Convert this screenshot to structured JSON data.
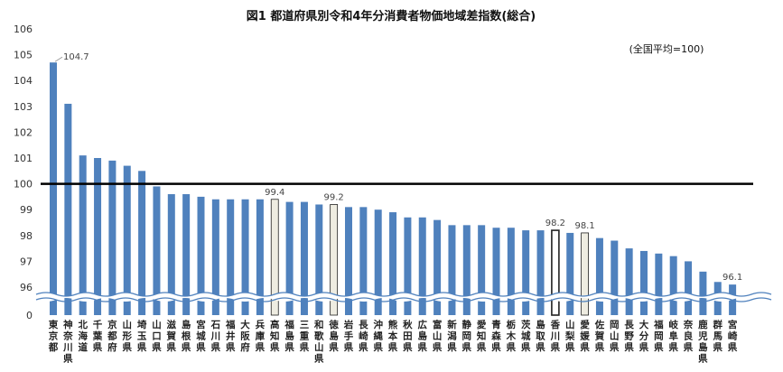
{
  "chart_data": {
    "type": "bar",
    "title": "図1 都道府県別令和4年分消費者物価地域差指数(総合)",
    "note": "(全国平均=100)",
    "ylim": [
      96,
      106
    ],
    "baseline_value": 100,
    "yticks": [
      "0",
      "96",
      "97",
      "98",
      "99",
      "100",
      "101",
      "102",
      "103",
      "104",
      "105",
      "106"
    ],
    "axis_break": true,
    "grid": false,
    "colors": {
      "bar": "#4f81bd",
      "highlight": "#eeece1",
      "outlined": "#ffffff",
      "baseline": "#000000"
    },
    "categories": [
      "東京都",
      "神奈川県",
      "北海道",
      "千葉県",
      "京都府",
      "山形県",
      "埼玉県",
      "山口県",
      "滋賀県",
      "島根県",
      "宮城県",
      "石川県",
      "福井県",
      "大阪府",
      "兵庫県",
      "高知県",
      "福島県",
      "三重県",
      "和歌山県",
      "徳島県",
      "岩手県",
      "長崎県",
      "沖縄県",
      "熊本県",
      "秋田県",
      "広島県",
      "富山県",
      "新潟県",
      "静岡県",
      "愛知県",
      "青森県",
      "栃木県",
      "茨城県",
      "島取県",
      "香川県",
      "山梨県",
      "愛媛県",
      "佐賀県",
      "岡山県",
      "長野県",
      "大分県",
      "福岡県",
      "岐阜県",
      "奈良県",
      "鹿児島県",
      "群馬県",
      "宮崎県"
    ],
    "values": [
      104.7,
      103.1,
      101.1,
      101.0,
      100.9,
      100.7,
      100.5,
      99.9,
      99.6,
      99.6,
      99.5,
      99.4,
      99.4,
      99.4,
      99.4,
      99.4,
      99.3,
      99.3,
      99.2,
      99.2,
      99.1,
      99.1,
      99.0,
      98.9,
      98.7,
      98.7,
      98.6,
      98.4,
      98.4,
      98.4,
      98.3,
      98.3,
      98.2,
      98.2,
      98.2,
      98.1,
      98.1,
      97.9,
      97.8,
      97.5,
      97.4,
      97.3,
      97.2,
      97.0,
      96.6,
      96.2,
      96.1
    ],
    "highlighted": [
      15,
      19,
      36
    ],
    "outlined": [
      34
    ],
    "data_labels": [
      {
        "index": 0,
        "text": "104.7"
      },
      {
        "index": 15,
        "text": "99.4"
      },
      {
        "index": 19,
        "text": "99.2"
      },
      {
        "index": 34,
        "text": "98.2"
      },
      {
        "index": 36,
        "text": "98.1"
      },
      {
        "index": 46,
        "text": "96.1"
      }
    ]
  }
}
